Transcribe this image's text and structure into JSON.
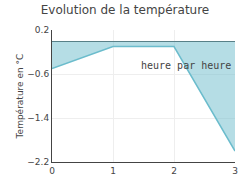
{
  "chart_data": {
    "type": "area",
    "title": "Evolution de la température",
    "ylabel": "Température en °C",
    "annotations": [
      "heure par heure"
    ],
    "x": [
      0,
      1,
      2,
      3
    ],
    "values": [
      -0.5,
      -0.1,
      -0.1,
      -2.0
    ],
    "color": "#6bbccc",
    "xlim": [
      0,
      3
    ],
    "xticks": [
      0,
      1,
      2,
      3
    ],
    "ylim": [
      -2.2,
      0.2
    ],
    "yticks": [
      0.2,
      -0.6,
      -1.4,
      -2.2
    ],
    "grid": true
  }
}
